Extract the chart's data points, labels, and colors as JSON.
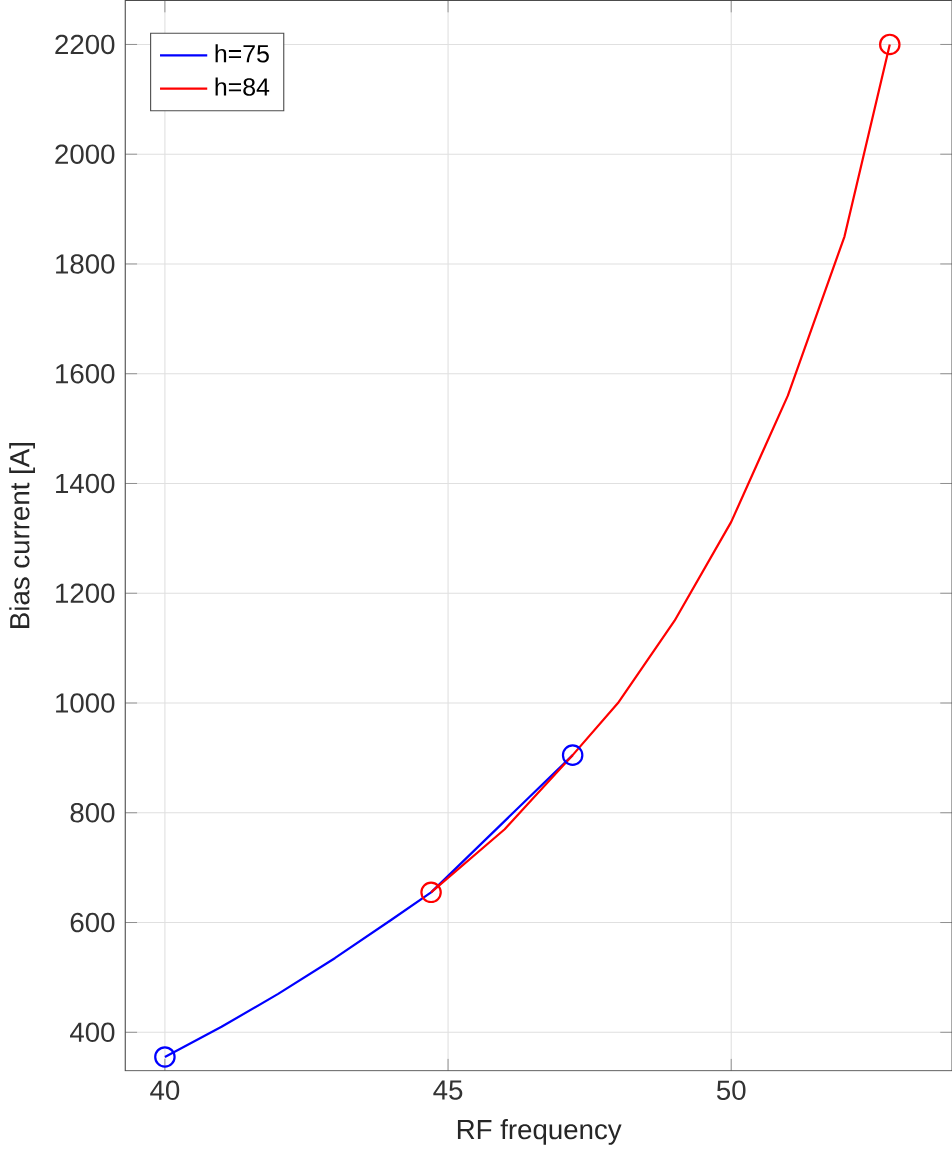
{
  "chart_data": {
    "type": "line",
    "xlabel": "RF frequency",
    "ylabel": "Bias current [A]",
    "xlim": [
      39.3,
      53.9
    ],
    "ylim": [
      330,
      2280
    ],
    "xticks": [
      40,
      45,
      50
    ],
    "yticks": [
      400,
      600,
      800,
      1000,
      1200,
      1400,
      1600,
      1800,
      2000,
      2200
    ],
    "grid": true,
    "legend": "top left",
    "series": [
      {
        "name": "h=75",
        "color": "#0000ff",
        "x": [
          40,
          41,
          42,
          43,
          44,
          44.7,
          45.5,
          46.5,
          47.2
        ],
        "values": [
          355,
          410,
          470,
          535,
          605,
          655,
          null,
          null,
          905
        ]
      },
      {
        "name": "h=84",
        "color": "#ff0000",
        "x": [
          44.7,
          46,
          47.2,
          48,
          49,
          50,
          51,
          52,
          52.8
        ],
        "values": [
          655,
          770,
          905,
          1000,
          1150,
          1330,
          1560,
          1850,
          2200
        ]
      },
      {
        "color": "#0000ff",
        "type": "scatter",
        "marker": "circle",
        "x": [
          40,
          47.2
        ],
        "values": [
          355,
          905
        ]
      },
      {
        "color": "#ff0000",
        "type": "scatter",
        "marker": "circle",
        "x": [
          44.7,
          52.8
        ],
        "values": [
          655,
          2200
        ]
      }
    ]
  }
}
